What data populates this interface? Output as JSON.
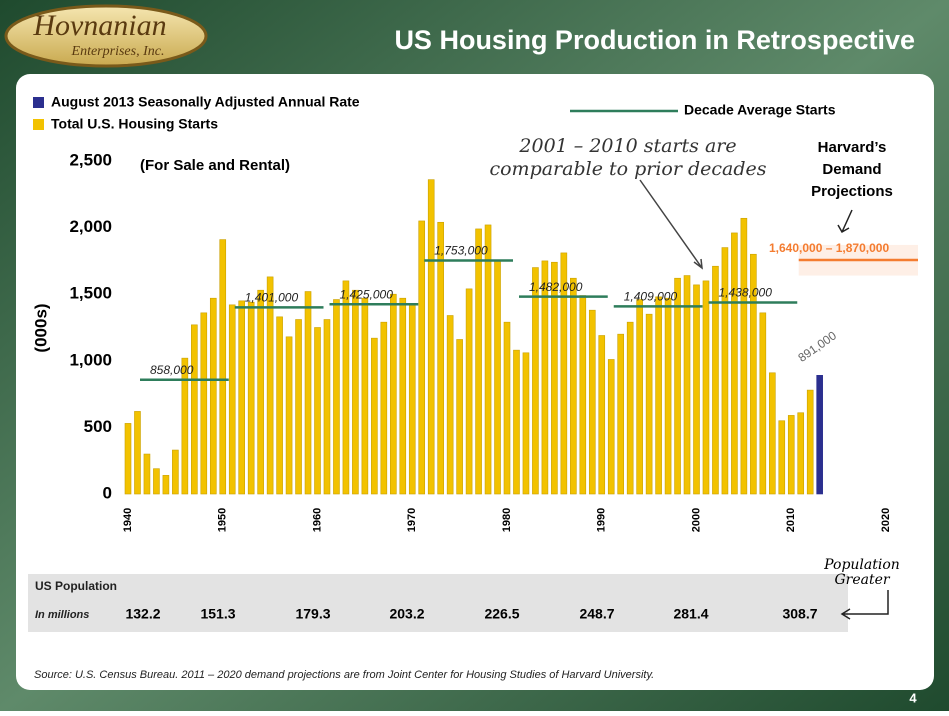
{
  "header": {
    "logo": "Hovnanian",
    "logo_sub": "Enterprises, Inc.",
    "title": "US Housing Production in Retrospective"
  },
  "chart_data": {
    "type": "bar",
    "subtitle": "(For Sale and Rental)",
    "y_label": "(000s)",
    "series": [
      {
        "name": "August 2013 Seasonally Adjusted Annual Rate",
        "color": "#2b2f8f",
        "x": [
          2013
        ],
        "values": [
          891
        ],
        "value_labels": [
          "891,000"
        ]
      },
      {
        "name": "Total U.S. Housing Starts",
        "color": "#f2c200",
        "x": [
          1940,
          1941,
          1942,
          1943,
          1944,
          1945,
          1946,
          1947,
          1948,
          1949,
          1950,
          1951,
          1952,
          1953,
          1954,
          1955,
          1956,
          1957,
          1958,
          1959,
          1960,
          1961,
          1962,
          1963,
          1964,
          1965,
          1966,
          1967,
          1968,
          1969,
          1970,
          1971,
          1972,
          1973,
          1974,
          1975,
          1976,
          1977,
          1978,
          1979,
          1980,
          1981,
          1982,
          1983,
          1984,
          1985,
          1986,
          1987,
          1988,
          1989,
          1990,
          1991,
          1992,
          1993,
          1994,
          1995,
          1996,
          1997,
          1998,
          1999,
          2000,
          2001,
          2002,
          2003,
          2004,
          2005,
          2006,
          2007,
          2008,
          2009,
          2010,
          2011,
          2012
        ],
        "values": [
          530,
          620,
          300,
          190,
          140,
          330,
          1020,
          1270,
          1360,
          1470,
          1910,
          1420,
          1450,
          1440,
          1530,
          1630,
          1330,
          1180,
          1310,
          1520,
          1250,
          1310,
          1460,
          1600,
          1530,
          1470,
          1170,
          1290,
          1500,
          1470,
          1430,
          2050,
          2360,
          2040,
          1340,
          1160,
          1540,
          1990,
          2020,
          1750,
          1290,
          1080,
          1060,
          1700,
          1750,
          1740,
          1810,
          1620,
          1490,
          1380,
          1190,
          1010,
          1200,
          1290,
          1460,
          1350,
          1480,
          1470,
          1620,
          1640,
          1570,
          1600,
          1710,
          1850,
          1960,
          2070,
          1800,
          1360,
          910,
          550,
          590,
          610,
          780
        ]
      }
    ],
    "decade_averages": {
      "name": "Decade Average Starts",
      "color": "#2e7d5b",
      "starts": [
        1940,
        1950,
        1960,
        1970,
        1980,
        1990,
        2000
      ],
      "values": [
        858,
        1401,
        1425,
        1753,
        1482,
        1409,
        1438
      ],
      "value_labels": [
        "858,000",
        "1,401,000",
        "1,425,000",
        "1,753,000",
        "1,482,000",
        "1,409,000",
        "1,438,000"
      ]
    },
    "projection": {
      "title": [
        "Harvard’s",
        "Demand",
        "Projections"
      ],
      "label": "1,640,000 – 1,870,000",
      "low": 1640,
      "high": 1870,
      "start": 2011,
      "end": 2020,
      "color": "#f47c30"
    },
    "note": [
      "2001 – 2010 starts are",
      "comparable to prior decades"
    ],
    "xlim": [
      1940,
      2020
    ],
    "xticks": [
      1940,
      1950,
      1960,
      1970,
      1980,
      1990,
      2000,
      2010,
      2020
    ],
    "ylim": [
      0,
      2500
    ],
    "yticks": [
      0,
      500,
      {
        "value": 1000,
        "label": "1,000"
      },
      {
        "value": 1500,
        "label": "1,500"
      },
      {
        "value": 2000,
        "label": "2,000"
      },
      {
        "value": 2500,
        "label": "2,500"
      }
    ]
  },
  "population": {
    "title": "US Population",
    "unit": "In millions",
    "values": [
      132.2,
      151.3,
      179.3,
      203.2,
      226.5,
      248.7,
      281.4,
      308.7
    ],
    "note": [
      "Population",
      "Greater"
    ]
  },
  "source": "Source:  U.S. Census Bureau.  2011 – 2020 demand projections are from Joint Center for Housing Studies of Harvard University.",
  "page_number": "4"
}
